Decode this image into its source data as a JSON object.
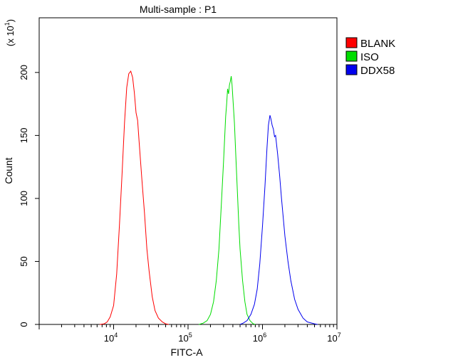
{
  "chart_data": {
    "type": "line",
    "title": "Multi-sample : P1",
    "xlabel": "FITC-A",
    "ylabel": "Count",
    "y_multiplier": {
      "base": "(x 10",
      "exp": "1",
      "close": ")"
    },
    "x_scale": "log",
    "xlim": [
      1000,
      10000000
    ],
    "ylim": [
      0,
      240
    ],
    "y_ticks": [
      0,
      50,
      100,
      150,
      200
    ],
    "y_tick_labels": [
      "0",
      "50",
      "100",
      "150",
      "200"
    ],
    "x_ticks": [
      10000,
      100000,
      1000000,
      10000000
    ],
    "x_tick_labels": [
      {
        "base": "10",
        "exp": "4"
      },
      {
        "base": "10",
        "exp": "5"
      },
      {
        "base": "10",
        "exp": "6"
      },
      {
        "base": "10",
        "exp": "7"
      }
    ],
    "grid": false,
    "legend_position": "top-right",
    "series": [
      {
        "name": "BLANK",
        "color": "#ff0000",
        "points": [
          [
            6500,
            0
          ],
          [
            7500,
            0.5
          ],
          [
            8200,
            2
          ],
          [
            9000,
            6
          ],
          [
            10000,
            15
          ],
          [
            11000,
            40
          ],
          [
            12000,
            80
          ],
          [
            13000,
            120
          ],
          [
            14000,
            160
          ],
          [
            15000,
            188
          ],
          [
            16000,
            199
          ],
          [
            17000,
            201
          ],
          [
            18000,
            196
          ],
          [
            19000,
            184
          ],
          [
            20000,
            168
          ],
          [
            21000,
            162
          ],
          [
            22000,
            145
          ],
          [
            24000,
            115
          ],
          [
            26000,
            88
          ],
          [
            28000,
            60
          ],
          [
            30000,
            42
          ],
          [
            33000,
            22
          ],
          [
            36000,
            11
          ],
          [
            40000,
            5
          ],
          [
            45000,
            2
          ],
          [
            50000,
            0.5
          ],
          [
            55000,
            0
          ]
        ]
      },
      {
        "name": "ISO",
        "color": "#00dd00",
        "points": [
          [
            140000,
            0
          ],
          [
            160000,
            1
          ],
          [
            180000,
            3
          ],
          [
            200000,
            8
          ],
          [
            220000,
            18
          ],
          [
            240000,
            35
          ],
          [
            260000,
            60
          ],
          [
            280000,
            95
          ],
          [
            300000,
            130
          ],
          [
            320000,
            165
          ],
          [
            330000,
            175
          ],
          [
            340000,
            187
          ],
          [
            350000,
            183
          ],
          [
            360000,
            190
          ],
          [
            370000,
            193
          ],
          [
            380000,
            197
          ],
          [
            390000,
            190
          ],
          [
            400000,
            180
          ],
          [
            420000,
            160
          ],
          [
            440000,
            132
          ],
          [
            460000,
            105
          ],
          [
            480000,
            80
          ],
          [
            500000,
            60
          ],
          [
            540000,
            35
          ],
          [
            580000,
            18
          ],
          [
            620000,
            8
          ],
          [
            680000,
            3
          ],
          [
            750000,
            0.5
          ],
          [
            800000,
            0
          ]
        ]
      },
      {
        "name": "DDX58",
        "color": "#0000ee",
        "points": [
          [
            500000,
            0
          ],
          [
            550000,
            1
          ],
          [
            620000,
            3
          ],
          [
            700000,
            8
          ],
          [
            780000,
            16
          ],
          [
            850000,
            28
          ],
          [
            920000,
            48
          ],
          [
            1000000,
            78
          ],
          [
            1080000,
            110
          ],
          [
            1150000,
            140
          ],
          [
            1200000,
            158
          ],
          [
            1260000,
            166
          ],
          [
            1300000,
            163
          ],
          [
            1350000,
            158
          ],
          [
            1400000,
            155
          ],
          [
            1450000,
            149
          ],
          [
            1500000,
            150
          ],
          [
            1600000,
            135
          ],
          [
            1700000,
            118
          ],
          [
            1800000,
            100
          ],
          [
            1900000,
            85
          ],
          [
            2000000,
            70
          ],
          [
            2200000,
            50
          ],
          [
            2400000,
            35
          ],
          [
            2700000,
            20
          ],
          [
            3000000,
            12
          ],
          [
            3500000,
            5
          ],
          [
            4000000,
            2
          ],
          [
            5000000,
            0.5
          ],
          [
            5500000,
            0
          ]
        ]
      }
    ]
  }
}
